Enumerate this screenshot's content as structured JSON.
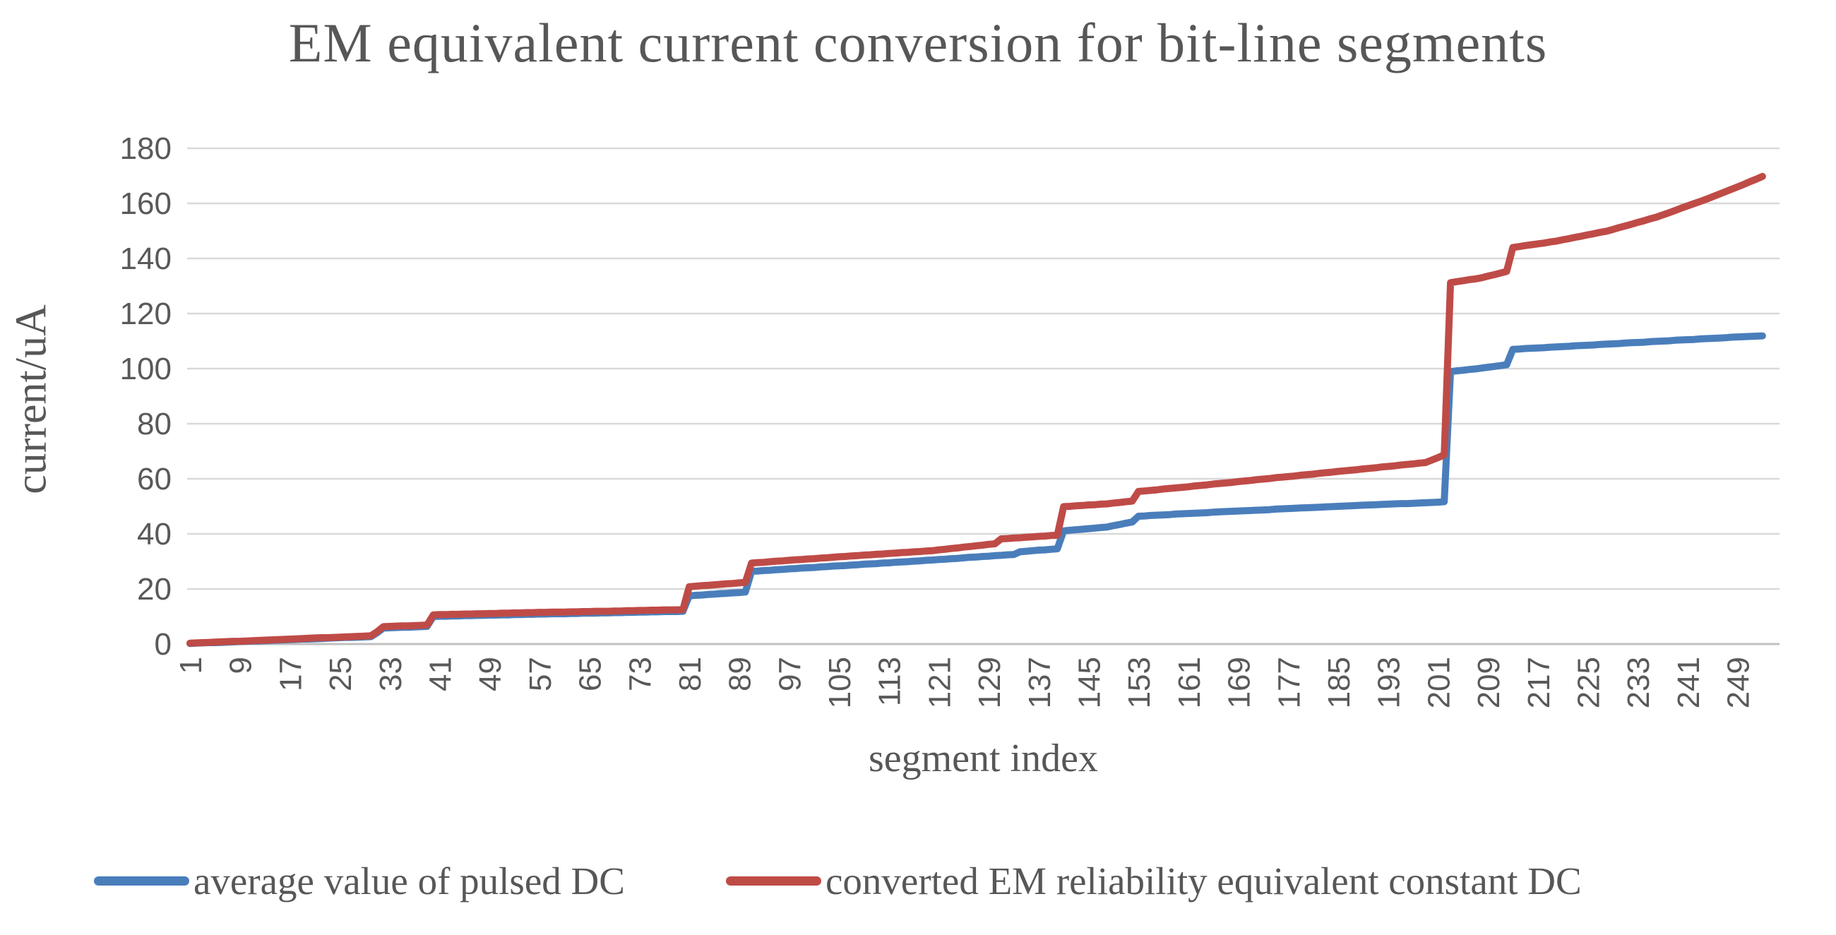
{
  "colors": {
    "text": "#595959",
    "grid": "#d9d9d9",
    "axis": "#bfbfbf",
    "background": "#ffffff",
    "series_blue": "#4a7ebb",
    "series_red": "#bf4b47"
  },
  "chart_data": {
    "type": "line",
    "title": "EM equivalent current conversion for bit-line segments",
    "xlabel": "segment index",
    "ylabel": "current/uA",
    "ylim": [
      0,
      180
    ],
    "y_tick_step": 20,
    "y_tick_labels": [
      "0",
      "20",
      "40",
      "60",
      "80",
      "100",
      "120",
      "140",
      "160",
      "180"
    ],
    "n_points": 253,
    "x_tick_interval": 8,
    "x_tick_labels": [
      "1",
      "9",
      "17",
      "25",
      "33",
      "41",
      "49",
      "57",
      "65",
      "73",
      "81",
      "89",
      "97",
      "105",
      "113",
      "121",
      "129",
      "137",
      "145",
      "153",
      "161",
      "169",
      "177",
      "185",
      "193",
      "201",
      "209",
      "217",
      "225",
      "233",
      "241",
      "249"
    ],
    "grid": "horizontal",
    "legend_position": "bottom",
    "series": [
      {
        "name": "average value of pulsed DC",
        "color": "#4a7ebb",
        "values": [
          0.2,
          0.3,
          0.4,
          0.5,
          0.5,
          0.6,
          0.7,
          0.8,
          0.9,
          1.0,
          1.1,
          1.1,
          1.2,
          1.3,
          1.4,
          1.5,
          1.6,
          1.7,
          1.8,
          1.8,
          1.9,
          2.0,
          2.1,
          2.2,
          2.3,
          2.4,
          2.4,
          2.5,
          2.6,
          2.7,
          4.1,
          5.8,
          5.9,
          6.0,
          6.1,
          6.1,
          6.2,
          6.3,
          6.4,
          10.0,
          10.1,
          10.1,
          10.2,
          10.2,
          10.3,
          10.3,
          10.4,
          10.4,
          10.5,
          10.5,
          10.6,
          10.6,
          10.7,
          10.7,
          10.8,
          10.8,
          10.9,
          10.9,
          11.0,
          11.0,
          11.0,
          11.1,
          11.1,
          11.2,
          11.2,
          11.2,
          11.3,
          11.3,
          11.4,
          11.4,
          11.5,
          11.5,
          11.6,
          11.6,
          11.7,
          11.7,
          11.8,
          11.8,
          11.8,
          11.9,
          17.5,
          17.7,
          17.8,
          18.0,
          18.1,
          18.3,
          18.4,
          18.6,
          18.7,
          18.9,
          26.4,
          26.5,
          26.7,
          26.8,
          27.0,
          27.1,
          27.3,
          27.4,
          27.6,
          27.7,
          27.8,
          28.0,
          28.1,
          28.3,
          28.4,
          28.5,
          28.7,
          28.8,
          29.0,
          29.1,
          29.2,
          29.4,
          29.5,
          29.7,
          29.8,
          29.9,
          30.1,
          30.2,
          30.4,
          30.5,
          30.7,
          30.8,
          31.0,
          31.1,
          31.3,
          31.5,
          31.6,
          31.8,
          31.9,
          32.1,
          32.2,
          32.4,
          32.5,
          33.5,
          33.7,
          33.9,
          34.1,
          34.2,
          34.4,
          34.6,
          41.1,
          41.3,
          41.5,
          41.7,
          41.9,
          42.1,
          42.3,
          42.5,
          43.0,
          43.4,
          43.9,
          44.3,
          46.4,
          46.5,
          46.7,
          46.8,
          46.9,
          47.0,
          47.2,
          47.3,
          47.4,
          47.5,
          47.6,
          47.7,
          47.9,
          48.0,
          48.1,
          48.2,
          48.3,
          48.4,
          48.5,
          48.6,
          48.7,
          48.8,
          49.0,
          49.1,
          49.2,
          49.3,
          49.4,
          49.5,
          49.6,
          49.7,
          49.8,
          49.9,
          50.0,
          50.1,
          50.2,
          50.3,
          50.4,
          50.5,
          50.6,
          50.7,
          50.8,
          50.9,
          51.0,
          51.0,
          51.1,
          51.2,
          51.3,
          51.4,
          51.5,
          51.7,
          98.9,
          99.2,
          99.4,
          99.7,
          99.9,
          100.2,
          100.5,
          100.8,
          101.1,
          101.4,
          107.0,
          107.1,
          107.3,
          107.4,
          107.5,
          107.6,
          107.8,
          107.9,
          108.0,
          108.1,
          108.3,
          108.4,
          108.5,
          108.6,
          108.8,
          108.9,
          109.0,
          109.1,
          109.3,
          109.4,
          109.5,
          109.6,
          109.8,
          109.9,
          110.0,
          110.1,
          110.3,
          110.4,
          110.5,
          110.6,
          110.8,
          110.9,
          111.0,
          111.1,
          111.2,
          111.4,
          111.5,
          111.6,
          111.7,
          111.8,
          111.9
        ]
      },
      {
        "name": "converted EM reliability equivalent constant DC",
        "color": "#bf4b47",
        "values": [
          0.3,
          0.4,
          0.5,
          0.6,
          0.7,
          0.8,
          0.9,
          1.0,
          1.0,
          1.1,
          1.2,
          1.3,
          1.4,
          1.5,
          1.6,
          1.7,
          1.8,
          1.9,
          2.0,
          2.1,
          2.2,
          2.3,
          2.3,
          2.4,
          2.5,
          2.6,
          2.7,
          2.8,
          2.9,
          3.0,
          4.5,
          6.3,
          6.4,
          6.5,
          6.6,
          6.6,
          6.7,
          6.8,
          6.9,
          10.6,
          10.7,
          10.7,
          10.8,
          10.8,
          10.9,
          10.9,
          11.0,
          11.0,
          11.1,
          11.1,
          11.2,
          11.2,
          11.3,
          11.3,
          11.4,
          11.4,
          11.5,
          11.5,
          11.6,
          11.6,
          11.6,
          11.7,
          11.7,
          11.8,
          11.8,
          11.9,
          11.9,
          11.9,
          12.0,
          12.0,
          12.1,
          12.1,
          12.2,
          12.2,
          12.3,
          12.3,
          12.4,
          12.4,
          12.4,
          12.5,
          20.8,
          21.0,
          21.2,
          21.3,
          21.5,
          21.7,
          21.9,
          22.0,
          22.2,
          22.4,
          29.4,
          29.6,
          29.7,
          29.9,
          30.1,
          30.2,
          30.4,
          30.6,
          30.7,
          30.9,
          31.0,
          31.2,
          31.3,
          31.5,
          31.7,
          31.8,
          32.0,
          32.1,
          32.3,
          32.4,
          32.6,
          32.7,
          32.9,
          33.0,
          33.2,
          33.3,
          33.5,
          33.6,
          33.8,
          33.9,
          34.2,
          34.4,
          34.7,
          34.9,
          35.2,
          35.4,
          35.7,
          35.9,
          36.2,
          36.4,
          38.2,
          38.3,
          38.5,
          38.6,
          38.8,
          38.9,
          39.1,
          39.2,
          39.4,
          39.5,
          49.9,
          50.0,
          50.2,
          50.3,
          50.5,
          50.6,
          50.8,
          50.9,
          51.2,
          51.4,
          51.7,
          51.9,
          55.4,
          55.6,
          55.8,
          56.0,
          56.3,
          56.5,
          56.7,
          56.9,
          57.1,
          57.4,
          57.6,
          57.8,
          58.1,
          58.3,
          58.5,
          58.7,
          59.0,
          59.2,
          59.4,
          59.7,
          59.9,
          60.1,
          60.4,
          60.6,
          60.8,
          61.0,
          61.3,
          61.5,
          61.7,
          62.0,
          62.2,
          62.4,
          62.7,
          62.9,
          63.1,
          63.3,
          63.6,
          63.8,
          64.0,
          64.3,
          64.5,
          64.7,
          65.0,
          65.2,
          65.4,
          65.7,
          65.9,
          66.8,
          67.7,
          68.7,
          131.2,
          131.6,
          131.9,
          132.3,
          132.6,
          133.0,
          133.6,
          134.1,
          134.7,
          135.3,
          144.0,
          144.3,
          144.7,
          145.0,
          145.3,
          145.6,
          146.0,
          146.3,
          146.8,
          147.2,
          147.7,
          148.1,
          148.6,
          149.0,
          149.5,
          149.9,
          150.5,
          151.2,
          151.8,
          152.4,
          153.1,
          153.7,
          154.4,
          155.0,
          155.8,
          156.6,
          157.4,
          158.3,
          159.1,
          159.9,
          160.7,
          161.5,
          162.4,
          163.3,
          164.2,
          165.1,
          166.0,
          166.9,
          167.9,
          168.8,
          169.8
        ]
      }
    ]
  }
}
